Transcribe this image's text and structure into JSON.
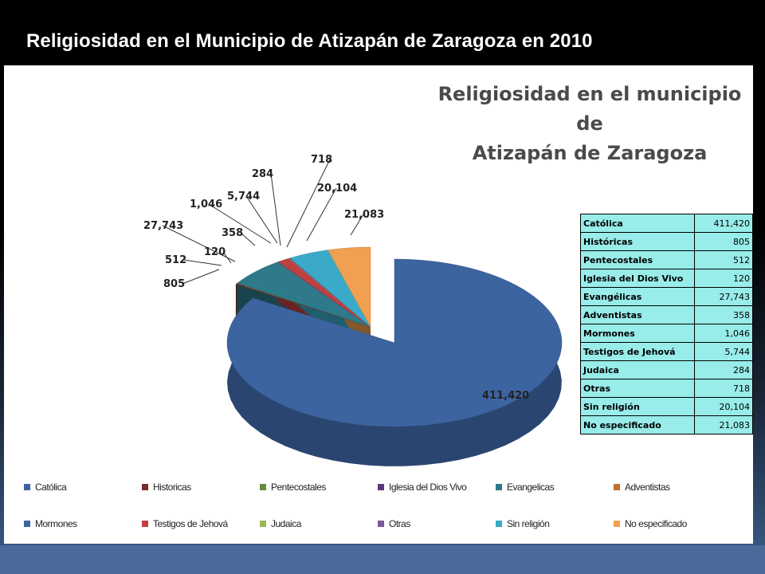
{
  "slide": {
    "title": "Religiosidad en el Municipio de Atizapán de Zaragoza en 2010"
  },
  "chart_data": {
    "type": "pie",
    "title_line1": "Religiosidad en el municipio de",
    "title_line2": "Atizapán de Zaragoza",
    "categories": [
      "Católica",
      "Históricas",
      "Pentecostales",
      "Iglesia del Dios Vivo",
      "Evangélicas",
      "Adventistas",
      "Mormones",
      "Testigos de Jehová",
      "Judaica",
      "Otras",
      "Sin religión",
      "No especificado"
    ],
    "values": [
      411420,
      805,
      512,
      120,
      27743,
      358,
      1046,
      5744,
      284,
      718,
      20104,
      21083
    ],
    "data_labels": [
      "411,420",
      "805",
      "512",
      "120",
      "27,743",
      "358",
      "1,046",
      "5,744",
      "284",
      "718",
      "20,104",
      "21,083"
    ],
    "colors": [
      "#3c64a0",
      "#7a2a2a",
      "#6a8a3a",
      "#5a3a7a",
      "#2e7a8a",
      "#c07030",
      "#3c64a0",
      "#c04040",
      "#98b850",
      "#7a5a9a",
      "#3aaac8",
      "#f0a050"
    ],
    "legend_labels": [
      "Católica",
      "Historicas",
      "Pentecostales",
      "Iglesia del Dios Vivo",
      "Evangelicas",
      "Adventistas",
      "Mormones",
      "Testigos de Jehová",
      "Judaica",
      "Otras",
      "Sin religión",
      "No especificado"
    ],
    "legend_placement": "bottom",
    "table": {
      "rows": [
        {
          "label": "Católica",
          "value": "411,420"
        },
        {
          "label": "Históricas",
          "value": "805"
        },
        {
          "label": "Pentecostales",
          "value": "512"
        },
        {
          "label": "Iglesia del Dios Vivo",
          "value": "120"
        },
        {
          "label": "Evangélicas",
          "value": "27,743"
        },
        {
          "label": "Adventistas",
          "value": "358"
        },
        {
          "label": "Mormones",
          "value": "1,046"
        },
        {
          "label": "Testigos de Jehová",
          "value": "5,744"
        },
        {
          "label": "Judaica",
          "value": "284"
        },
        {
          "label": "Otras",
          "value": "718"
        },
        {
          "label": "Sin religión",
          "value": "20,104"
        },
        {
          "label": "No especificado",
          "value": "21,083"
        }
      ]
    }
  }
}
